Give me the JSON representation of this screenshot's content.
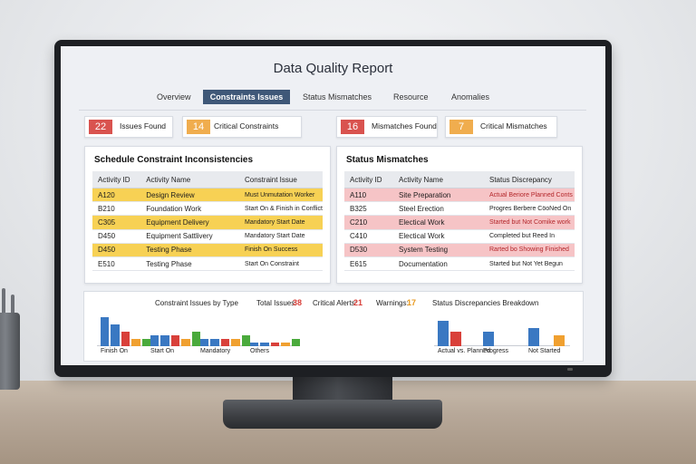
{
  "report": {
    "title": "Data Quality Report",
    "tabs": [
      "Overview",
      "Constraints Issues",
      "Status Mismatches",
      "Resource",
      "Anomalies"
    ],
    "active_tab": "Constraints Issues"
  },
  "summary_cards": [
    {
      "value": "22",
      "label": "Issues Found",
      "color": "#d9534f"
    },
    {
      "value": "14",
      "label": "Critical Constraints",
      "color": "#f0ad4e"
    },
    {
      "value": "16",
      "label": "Mismatches Found",
      "color": "#d9534f"
    },
    {
      "value": "7",
      "label": "Critical Mismatches",
      "color": "#f0ad4e"
    }
  ],
  "constraints_panel": {
    "title": "Schedule Constraint Inconsistencies",
    "headers": [
      "Activity ID",
      "Activity Name",
      "Constraint Issue"
    ],
    "rows": [
      {
        "id": "A120",
        "name": "Design Review",
        "issue": "Must Unmutation Worker",
        "highlight": "yellow"
      },
      {
        "id": "B210",
        "name": "Foundation Work",
        "issue": "Start On & Finish in Conflict",
        "highlight": "none"
      },
      {
        "id": "C305",
        "name": "Equipment Delivery",
        "issue": "Mandatory Start Date",
        "highlight": "yellow"
      },
      {
        "id": "D450",
        "name": "Equipment Sattlivery",
        "issue": "Mandatory Start Date",
        "highlight": "none"
      },
      {
        "id": "D450",
        "name": "Testing Phase",
        "issue": "Finish On Success",
        "highlight": "yellow"
      },
      {
        "id": "E510",
        "name": "Testing Phase",
        "issue": "Start On Constraint",
        "highlight": "none"
      }
    ]
  },
  "status_panel": {
    "title": "Status Mismatches",
    "headers": [
      "Activity ID",
      "Activity Name",
      "Status Discrepancy"
    ],
    "rows": [
      {
        "id": "A110",
        "name": "Site Preparation",
        "issue": "Actual Beriore Planned Conts",
        "highlight": "red"
      },
      {
        "id": "B325",
        "name": "Steel Erection",
        "issue": "Progres Berbere CöoNed On",
        "highlight": "none"
      },
      {
        "id": "C210",
        "name": "Electical Work",
        "issue": "Started but Not Comike work",
        "highlight": "red"
      },
      {
        "id": "C410",
        "name": "Electical Work",
        "issue": "Completed but Reed In",
        "highlight": "none"
      },
      {
        "id": "D530",
        "name": "System Testing",
        "issue": "Rarted bo Showing Finished",
        "highlight": "red"
      },
      {
        "id": "E615",
        "name": "Documentation",
        "issue": "Started but Not Yet Begun",
        "highlight": "none"
      }
    ]
  },
  "bottom_bar": {
    "constraint_chart_title": "Constraint Issues by Type",
    "total_label": "Total Issues:",
    "total_value": "38",
    "critical_label": "Critical Alerts:",
    "critical_value": "21",
    "warnings_label": "Warnings:",
    "warnings_value": "17",
    "status_chart_title": "Status Discrepancies Breakdown"
  },
  "chart_data": [
    {
      "type": "bar",
      "title": "Constraint Issues by Type",
      "categories": [
        "Finish On",
        "Start On",
        "Mandatory",
        "Others"
      ],
      "series": [
        {
          "color": "#3a78c2",
          "values": [
            8,
            3,
            2,
            1
          ]
        },
        {
          "color": "#3a78c2",
          "values": [
            6,
            3,
            2,
            1
          ]
        },
        {
          "color": "#d9403a",
          "values": [
            4,
            3,
            2,
            1
          ]
        },
        {
          "color": "#f0a030",
          "values": [
            2,
            2,
            2,
            1
          ]
        },
        {
          "color": "#4aaa3c",
          "values": [
            2,
            4,
            3,
            2
          ]
        }
      ],
      "ylim": [
        0,
        10
      ]
    },
    {
      "type": "bar",
      "title": "Status Discrepancies Breakdown",
      "categories": [
        "Actual vs. Planned",
        "Progress",
        "Not Started"
      ],
      "series": [
        {
          "color": "#3a78c2",
          "values": [
            7,
            4,
            5
          ]
        },
        {
          "color": "#d9403a",
          "values": [
            4,
            0,
            0
          ]
        },
        {
          "color": "#f0a030",
          "values": [
            0,
            0,
            3
          ]
        }
      ],
      "ylim": [
        0,
        10
      ]
    }
  ]
}
